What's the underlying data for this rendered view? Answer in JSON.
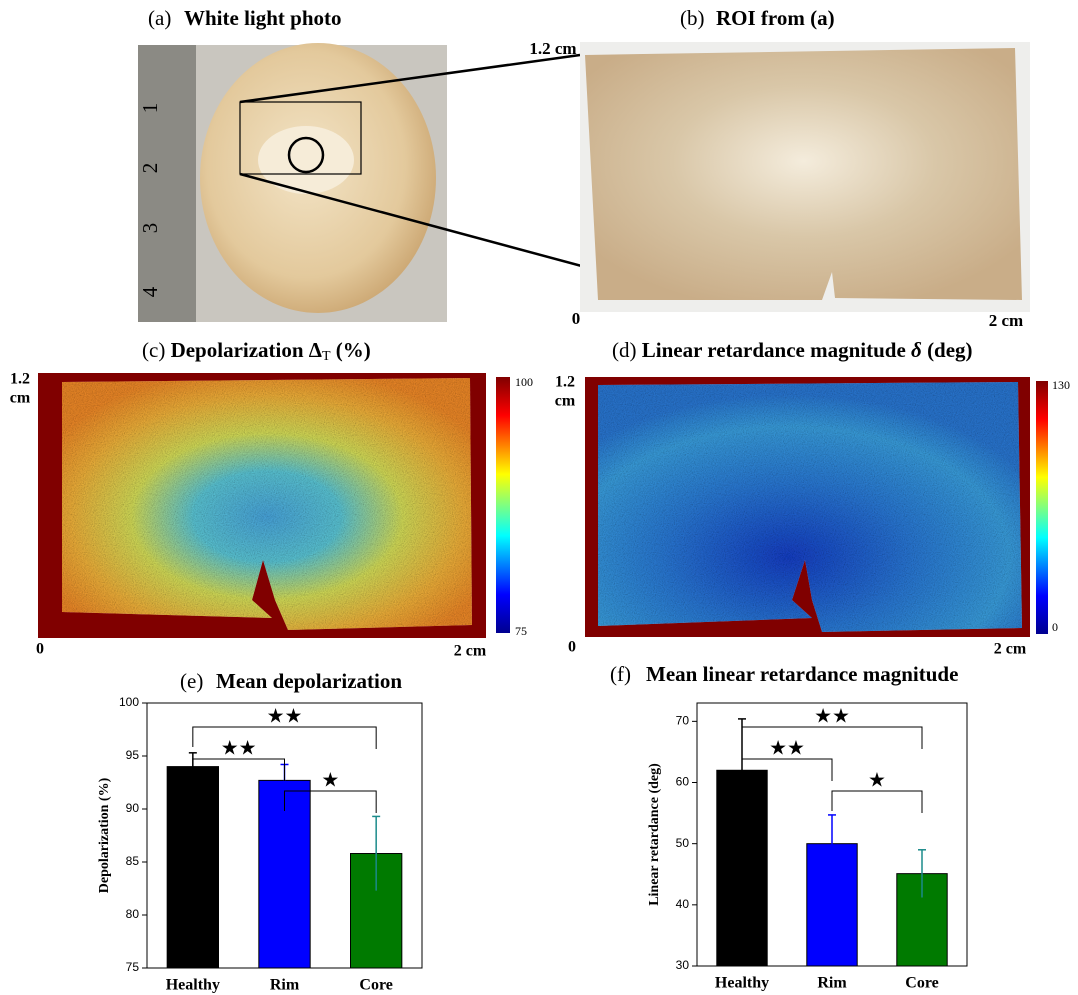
{
  "panels": {
    "a": {
      "label": "(a)",
      "title": "White light photo",
      "ruler": [
        "1",
        "2",
        "3",
        "4"
      ]
    },
    "b": {
      "label": "(b)",
      "title": "ROI from (a)",
      "y_top": "1.2 cm",
      "origin": "0",
      "x_right": "2 cm"
    },
    "c": {
      "label": "(c)",
      "title": "Depolarization Δ",
      "title_sub": "T",
      "title_end": "(%)",
      "y_top": "1.2",
      "y_unit": "cm",
      "origin": "0",
      "x_right": "2 cm",
      "colorbar_max": "100",
      "colorbar_min": "75"
    },
    "d": {
      "label": "(d)",
      "title": "Linear retardance magnitude",
      "title_symbol": "δ",
      "title_end": "(deg)",
      "y_top": "1.2",
      "y_unit": "cm",
      "origin": "0",
      "x_right": "2 cm",
      "colorbar_max": "130",
      "colorbar_min": "0"
    }
  },
  "chart_data": [
    {
      "type": "bar",
      "label": "(e)",
      "title": "Mean depolarization",
      "ylabel": "Depolarization (%)",
      "categories": [
        "Healthy",
        "Rim",
        "Core"
      ],
      "values": [
        94.0,
        92.7,
        85.8
      ],
      "errors": [
        1.3,
        1.5,
        3.5
      ],
      "colors": [
        "#000000",
        "#0000ff",
        "#007a00"
      ],
      "ylim": [
        75,
        100
      ],
      "yticks": [
        75,
        80,
        85,
        90,
        95,
        100
      ],
      "annotations": [
        {
          "text": "★★",
          "from": "Healthy",
          "to": "Core"
        },
        {
          "text": "★★",
          "from": "Healthy",
          "to": "Rim"
        },
        {
          "text": "★",
          "from": "Rim",
          "to": "Core"
        }
      ]
    },
    {
      "type": "bar",
      "label": "(f)",
      "title": "Mean linear retardance magnitude",
      "ylabel": "Linear retardance (deg)",
      "categories": [
        "Healthy",
        "Rim",
        "Core"
      ],
      "values": [
        62.0,
        50.0,
        45.1
      ],
      "errors": [
        8.4,
        4.7,
        3.9
      ],
      "colors": [
        "#000000",
        "#0000ff",
        "#007a00"
      ],
      "ylim": [
        30,
        73
      ],
      "yticks": [
        30,
        40,
        50,
        60,
        70
      ],
      "annotations": [
        {
          "text": "★★",
          "from": "Healthy",
          "to": "Core"
        },
        {
          "text": "★★",
          "from": "Healthy",
          "to": "Rim"
        },
        {
          "text": "★",
          "from": "Rim",
          "to": "Core"
        }
      ]
    }
  ]
}
